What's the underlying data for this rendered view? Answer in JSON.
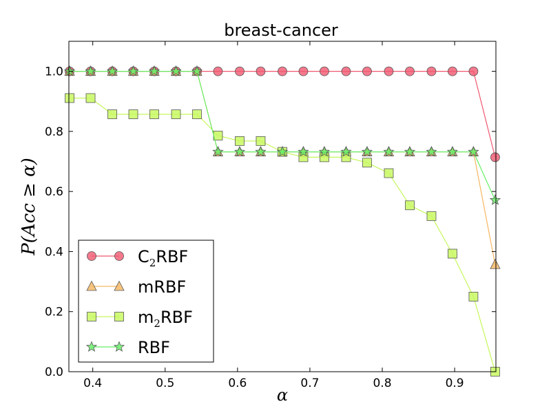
{
  "chart_data": {
    "type": "line",
    "title": "breast-cancer",
    "xlabel": "α",
    "ylabel": "P(Acc ≥ α)",
    "xlim": [
      0.367,
      0.957
    ],
    "ylim": [
      0.0,
      1.1
    ],
    "x_ticks": [
      "0.4",
      "0.5",
      "0.6",
      "0.7",
      "0.8",
      "0.9"
    ],
    "x_tick_values": [
      0.4,
      0.5,
      0.6,
      0.7,
      0.8,
      0.9
    ],
    "y_ticks": [
      "0.0",
      "0.2",
      "0.4",
      "0.6",
      "0.8",
      "1.0"
    ],
    "y_tick_values": [
      0.0,
      0.2,
      0.4,
      0.6,
      0.8,
      1.0
    ],
    "legend_location": "lower-left",
    "x": [
      0.368,
      0.397,
      0.427,
      0.456,
      0.485,
      0.515,
      0.544,
      0.573,
      0.603,
      0.632,
      0.662,
      0.691,
      0.72,
      0.75,
      0.779,
      0.809,
      0.838,
      0.868,
      0.897,
      0.926,
      0.956
    ],
    "series": [
      {
        "name": "C2RBF",
        "legend_main": "C",
        "legend_sub": "2",
        "legend_rest": "RBF",
        "marker": "circle",
        "color": "#f0576f",
        "values": [
          1.0,
          1.0,
          1.0,
          1.0,
          1.0,
          1.0,
          1.0,
          1.0,
          1.0,
          1.0,
          1.0,
          1.0,
          1.0,
          1.0,
          1.0,
          1.0,
          1.0,
          1.0,
          1.0,
          1.0,
          0.714
        ]
      },
      {
        "name": "mRBF",
        "legend_main": "mRBF",
        "legend_sub": "",
        "legend_rest": "",
        "marker": "triangle",
        "color": "#f5b660",
        "values": [
          1.0,
          1.0,
          1.0,
          1.0,
          1.0,
          1.0,
          1.0,
          0.732,
          0.732,
          0.732,
          0.732,
          0.732,
          0.732,
          0.732,
          0.732,
          0.732,
          0.732,
          0.732,
          0.732,
          0.732,
          0.357
        ]
      },
      {
        "name": "m2RBF",
        "legend_main": "m",
        "legend_sub": "2",
        "legend_rest": "RBF",
        "marker": "square",
        "color": "#c6f75a",
        "values": [
          0.911,
          0.911,
          0.857,
          0.857,
          0.857,
          0.857,
          0.857,
          0.786,
          0.768,
          0.768,
          0.732,
          0.714,
          0.714,
          0.714,
          0.696,
          0.661,
          0.554,
          0.518,
          0.393,
          0.25,
          0.0
        ]
      },
      {
        "name": "RBF",
        "legend_main": "RBF",
        "legend_sub": "",
        "legend_rest": "",
        "marker": "star",
        "color": "#66ee66",
        "values": [
          1.0,
          1.0,
          1.0,
          1.0,
          1.0,
          1.0,
          1.0,
          0.732,
          0.732,
          0.732,
          0.732,
          0.732,
          0.732,
          0.732,
          0.732,
          0.732,
          0.732,
          0.732,
          0.732,
          0.732,
          0.571
        ]
      }
    ]
  }
}
